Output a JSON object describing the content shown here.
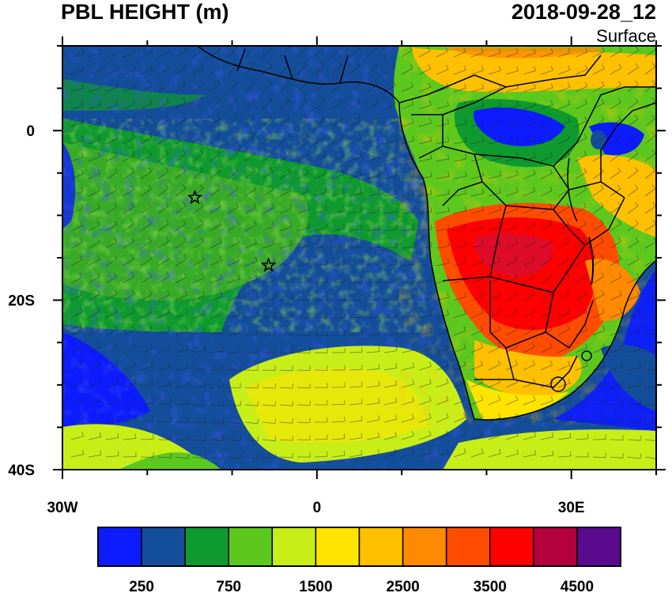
{
  "title": "PBL HEIGHT (m)",
  "datetime": "2018-09-28_12",
  "level": "Surface",
  "map": {
    "lon_range": [
      -30,
      40
    ],
    "lat_range": [
      -40,
      10
    ],
    "x_ticks": [
      {
        "lon": -30,
        "label": "30W"
      },
      {
        "lon": 0,
        "label": "0"
      },
      {
        "lon": 30,
        "label": "30E"
      }
    ],
    "y_ticks": [
      {
        "lat": 0,
        "label": "0"
      },
      {
        "lat": -20,
        "label": "20S"
      },
      {
        "lat": -40,
        "label": "40S"
      }
    ],
    "markers": [
      {
        "name": "star-marker-ascension",
        "lon": -14.4,
        "lat": -7.9
      },
      {
        "name": "star-marker-st-helena",
        "lon": -5.7,
        "lat": -15.9
      }
    ],
    "shaded_field": "PBL height",
    "overlay": "wind barbs",
    "boundaries": "country borders and coastlines"
  },
  "colorbar": {
    "colors": [
      "#0c1cff",
      "#144e9a",
      "#0e9a2e",
      "#5cc81e",
      "#c8ee18",
      "#ffe400",
      "#ffc000",
      "#ff8a00",
      "#ff4c00",
      "#ff0000",
      "#b4003c",
      "#5a0a8c"
    ],
    "labels": [
      {
        "value": 250,
        "label": "250"
      },
      {
        "value": 750,
        "label": "750"
      },
      {
        "value": 1500,
        "label": "1500"
      },
      {
        "value": 2500,
        "label": "2500"
      },
      {
        "value": 3500,
        "label": "3500"
      },
      {
        "value": 4500,
        "label": "4500"
      }
    ]
  }
}
